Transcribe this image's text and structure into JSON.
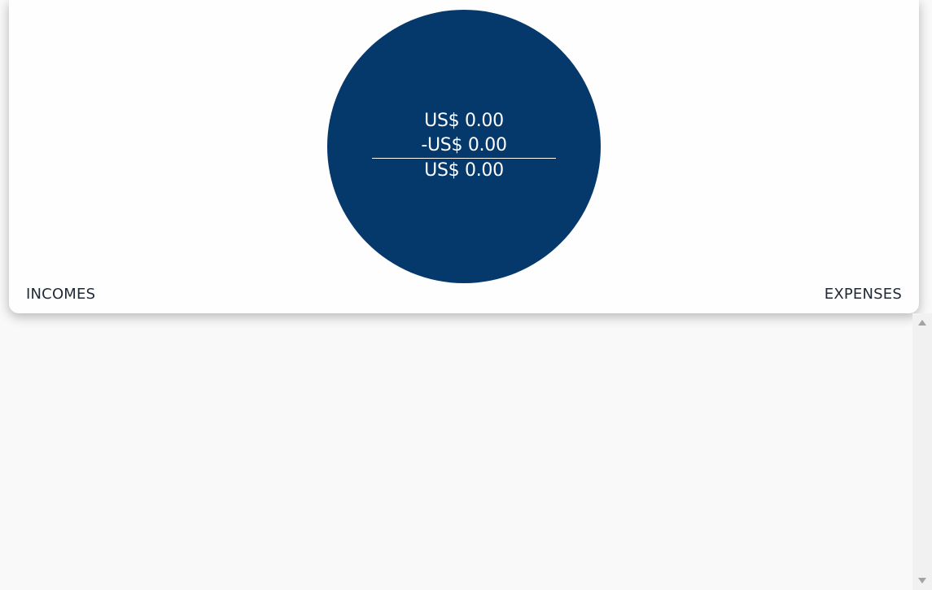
{
  "summary": {
    "incomes_amount": "US$ 0.00",
    "expenses_amount": "-US$ 0.00",
    "balance_amount": "US$ 0.00",
    "incomes_label": "INCOMES",
    "expenses_label": "EXPENSES"
  },
  "colors": {
    "circle": "#05386b",
    "page_background": "#f8f9f8",
    "card_background": "#fefefe",
    "label_text": "#222a35"
  },
  "icons": {
    "scroll_up": "triangle-up",
    "scroll_down": "triangle-down"
  }
}
